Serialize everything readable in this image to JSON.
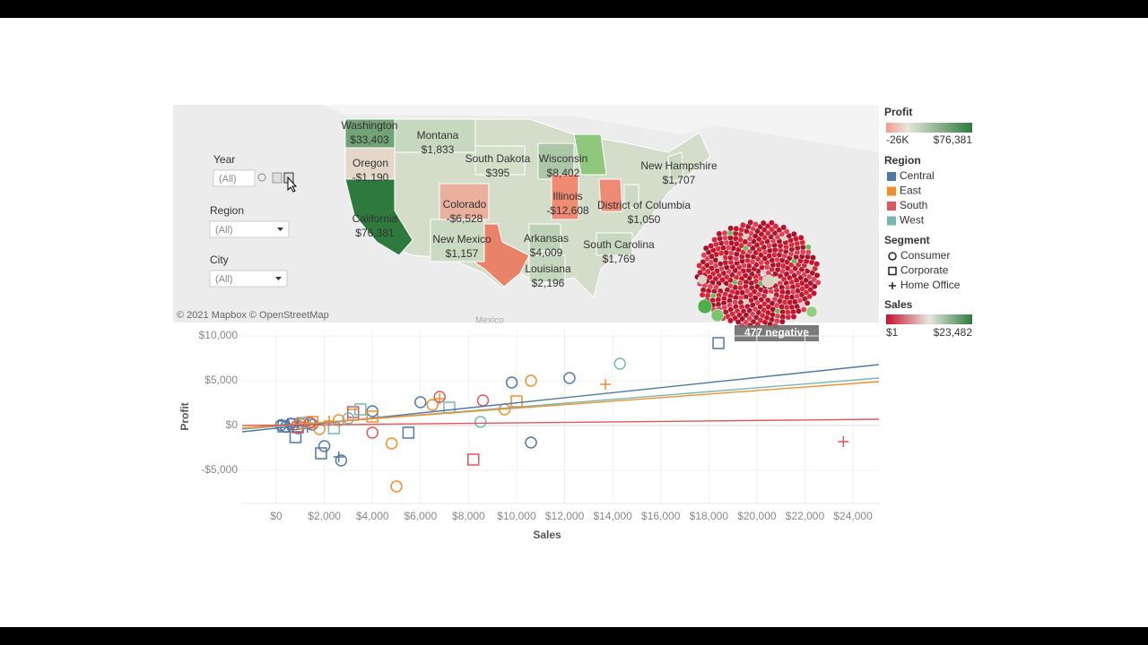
{
  "filters": [
    {
      "label": "Year",
      "value": "(All)"
    },
    {
      "label": "Region",
      "value": "(All)"
    },
    {
      "label": "City",
      "value": "(All)"
    }
  ],
  "map": {
    "states": [
      {
        "name": "Washington",
        "value": 33403,
        "label": "$33,403"
      },
      {
        "name": "Oregon",
        "value": -1190,
        "label": "-$1,190"
      },
      {
        "name": "California",
        "value": 76381,
        "label": "$76,381"
      },
      {
        "name": "Montana",
        "value": 1833,
        "label": "$1,833"
      },
      {
        "name": "South Dakota",
        "value": 395,
        "label": "$395"
      },
      {
        "name": "Wisconsin",
        "value": 8402,
        "label": "$8,402"
      },
      {
        "name": "New Hampshire",
        "value": 1707,
        "label": "$1,707"
      },
      {
        "name": "Colorado",
        "value": -6528,
        "label": "-$6,528"
      },
      {
        "name": "Illinois",
        "value": -12608,
        "label": "-$12,608"
      },
      {
        "name": "District of Columbia",
        "value": 1050,
        "label": "$1,050"
      },
      {
        "name": "New Mexico",
        "value": 1157,
        "label": "$1,157"
      },
      {
        "name": "Arkansas",
        "value": 4009,
        "label": "$4,009"
      },
      {
        "name": "South Carolina",
        "value": 1769,
        "label": "$1,769"
      },
      {
        "name": "Louisiana",
        "value": 2196,
        "label": "$2,196"
      }
    ],
    "attribution": "© 2021 Mapbox © OpenStreetMap",
    "place_label": "Mexico"
  },
  "annotation": "477 negative",
  "legends": {
    "profit": {
      "title": "Profit",
      "min": {
        "value": -26000,
        "label": "-26K"
      },
      "max": {
        "value": 76381,
        "label": "$76,381"
      }
    },
    "region": {
      "title": "Region",
      "items": [
        {
          "name": "Central",
          "color": "#4e79a7"
        },
        {
          "name": "East",
          "color": "#f28e2b"
        },
        {
          "name": "South",
          "color": "#e15759"
        },
        {
          "name": "West",
          "color": "#76b7b2"
        }
      ]
    },
    "segment": {
      "title": "Segment",
      "items": [
        "Consumer",
        "Corporate",
        "Home Office"
      ]
    },
    "sales": {
      "title": "Sales",
      "min": {
        "value": 1,
        "label": "$1"
      },
      "max": {
        "value": 23482,
        "label": "$23,482"
      }
    }
  },
  "chart_data": {
    "type": "scatter",
    "x_label": "Sales",
    "y_label": "Profit",
    "xlim": [
      -1420,
      25080
    ],
    "ylim": [
      -8700,
      10700
    ],
    "xticks": [
      {
        "value": 0,
        "label": "$0"
      },
      {
        "value": 2000,
        "label": "$2,000"
      },
      {
        "value": 4000,
        "label": "$4,000"
      },
      {
        "value": 6000,
        "label": "$6,000"
      },
      {
        "value": 8000,
        "label": "$8,000"
      },
      {
        "value": 10000,
        "label": "$10,000"
      },
      {
        "value": 12000,
        "label": "$12,000"
      },
      {
        "value": 14000,
        "label": "$14,000"
      },
      {
        "value": 16000,
        "label": "$16,000"
      },
      {
        "value": 18000,
        "label": "$18,000"
      },
      {
        "value": 20000,
        "label": "$20,000"
      },
      {
        "value": 22000,
        "label": "$22,000"
      },
      {
        "value": 24000,
        "label": "$24,000"
      }
    ],
    "yticks": [
      {
        "value": 10000,
        "label": "$10,000"
      },
      {
        "value": 5000,
        "label": "$5,000"
      },
      {
        "value": 0,
        "label": "$0"
      },
      {
        "value": -5000,
        "label": "-$5,000"
      }
    ],
    "trend_lines": [
      {
        "color": "#4e79a7",
        "x": [
          -1420,
          25080
        ],
        "y": [
          -700,
          6800
        ]
      },
      {
        "color": "#76b7b2",
        "x": [
          -1420,
          25080
        ],
        "y": [
          -400,
          5300
        ]
      },
      {
        "color": "#f28e2b",
        "x": [
          -1420,
          25080
        ],
        "y": [
          -300,
          4900
        ]
      },
      {
        "color": "#e15759",
        "x": [
          -1420,
          25080
        ],
        "y": [
          0,
          700
        ]
      }
    ],
    "series": [
      {
        "region": "Central",
        "segment": "Consumer",
        "color": "#4e79a7",
        "x": [
          200,
          400,
          600,
          900,
          1200,
          1500,
          2000,
          2700,
          4000,
          6000,
          9800,
          12200,
          10600
        ],
        "y": [
          50,
          -150,
          200,
          -300,
          300,
          100,
          -2300,
          -3900,
          1600,
          2600,
          4800,
          5300,
          -1900
        ]
      },
      {
        "region": "Central",
        "segment": "Corporate",
        "color": "#4e79a7",
        "x": [
          300,
          700,
          800,
          1100,
          1865,
          5500,
          18400
        ],
        "y": [
          -100,
          150,
          -1300,
          250,
          -3100,
          -800,
          9200
        ]
      },
      {
        "region": "Central",
        "segment": "Home Office",
        "color": "#4e79a7",
        "x": [
          500,
          1300,
          2600
        ],
        "y": [
          100,
          -200,
          -3500
        ]
      },
      {
        "region": "East",
        "segment": "Consumer",
        "color": "#f28e2b",
        "x": [
          1000,
          1800,
          2600,
          4800,
          5000,
          6500,
          9500,
          10600
        ],
        "y": [
          200,
          -400,
          600,
          -2000,
          -6800,
          2300,
          1800,
          5000
        ]
      },
      {
        "region": "East",
        "segment": "Corporate",
        "color": "#f28e2b",
        "x": [
          1500,
          3200,
          4000,
          10000
        ],
        "y": [
          400,
          1200,
          1000,
          2700
        ]
      },
      {
        "region": "East",
        "segment": "Home Office",
        "color": "#f28e2b",
        "x": [
          2200,
          6800,
          13700
        ],
        "y": [
          500,
          3000,
          4600
        ]
      },
      {
        "region": "South",
        "segment": "Consumer",
        "color": "#e15759",
        "x": [
          1400,
          4000,
          6800,
          8600
        ],
        "y": [
          300,
          -800,
          3200,
          2800
        ]
      },
      {
        "region": "South",
        "segment": "Corporate",
        "color": "#e15759",
        "x": [
          900,
          3200,
          8200
        ],
        "y": [
          -200,
          1500,
          -3800
        ]
      },
      {
        "region": "South",
        "segment": "Home Office",
        "color": "#e15759",
        "x": [
          23600
        ],
        "y": [
          -1800
        ]
      },
      {
        "region": "West",
        "segment": "Consumer",
        "color": "#76b7b2",
        "x": [
          1200,
          3000,
          8500,
          14300
        ],
        "y": [
          300,
          800,
          400,
          6900
        ]
      },
      {
        "region": "West",
        "segment": "Corporate",
        "color": "#76b7b2",
        "x": [
          2400,
          3500,
          7200
        ],
        "y": [
          -300,
          1800,
          2000
        ]
      }
    ]
  }
}
